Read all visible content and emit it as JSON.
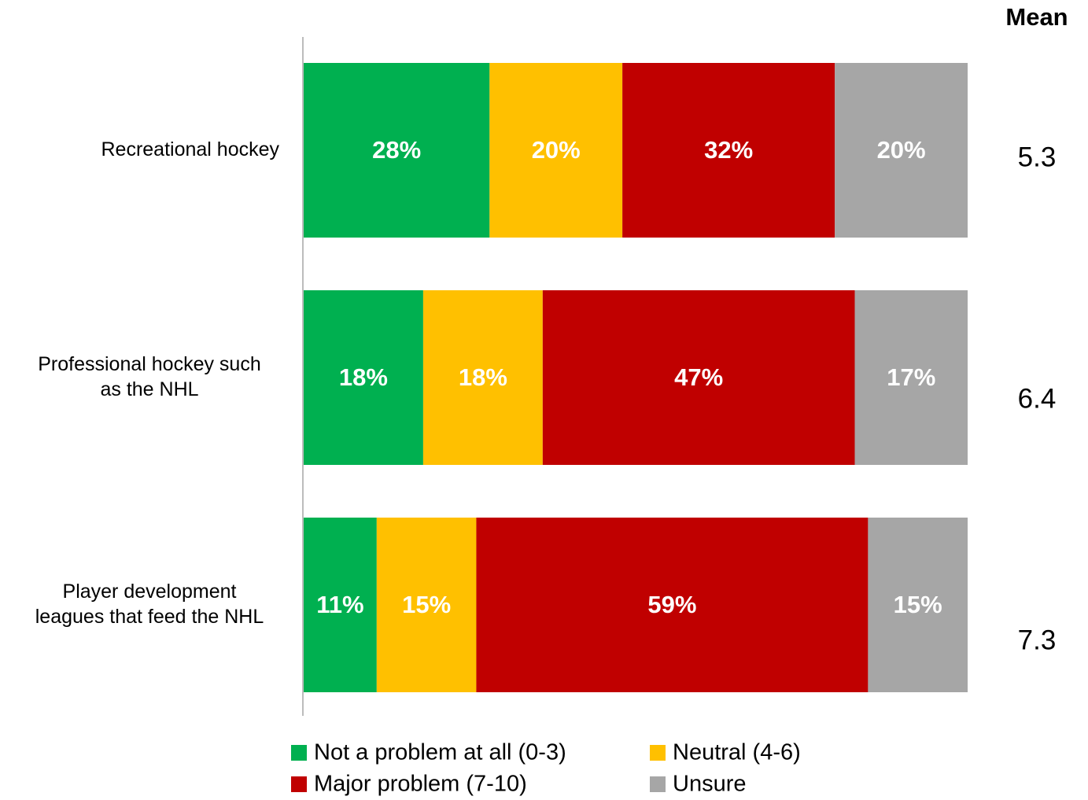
{
  "chart_data": {
    "type": "stacked-bar-horizontal",
    "categories": [
      "Recreational hockey",
      "Professional hockey such\nas the NHL",
      "Player development\nleagues that feed the NHL"
    ],
    "series": [
      {
        "name": "Not a problem at all (0-3)",
        "color": "#00b050",
        "values": [
          28,
          18,
          11
        ],
        "value_labels": [
          "28%",
          "18%",
          "11%"
        ]
      },
      {
        "name": "Neutral (4-6)",
        "color": "#ffc000",
        "values": [
          20,
          18,
          15
        ],
        "value_labels": [
          "20%",
          "18%",
          "15%"
        ]
      },
      {
        "name": "Major problem (7-10)",
        "color": "#c00000",
        "values": [
          32,
          47,
          59
        ],
        "value_labels": [
          "32%",
          "47%",
          "59%"
        ]
      },
      {
        "name": "Unsure",
        "color": "#a6a6a6",
        "values": [
          20,
          17,
          15
        ],
        "value_labels": [
          "20%",
          "17%",
          "15%"
        ]
      }
    ],
    "xlim": [
      0,
      100
    ],
    "mean": {
      "label": "Mean",
      "values": [
        5.3,
        6.4,
        7.3
      ]
    }
  }
}
